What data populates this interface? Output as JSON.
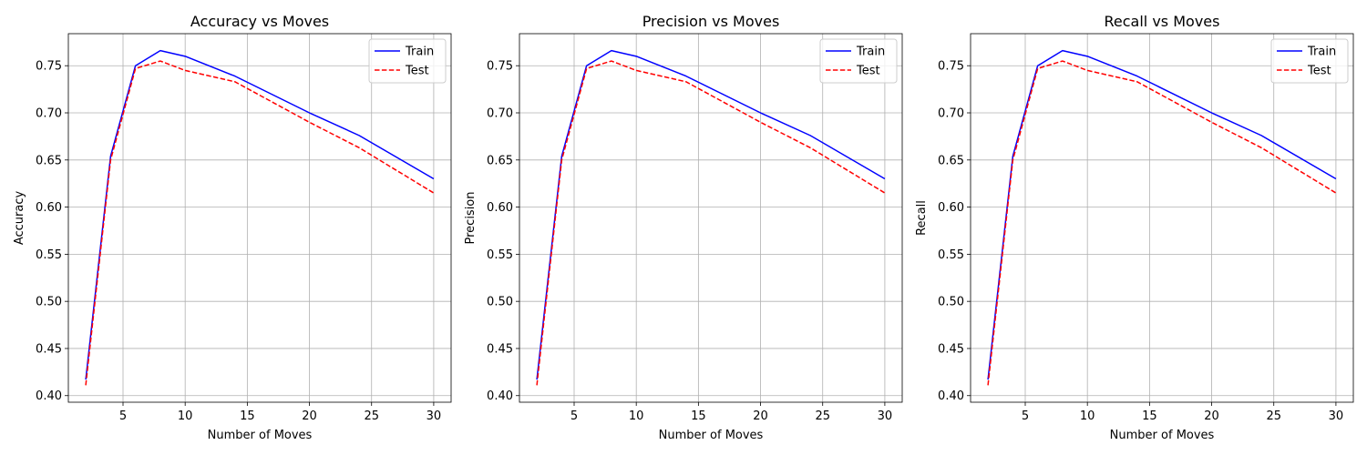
{
  "chart_data": [
    {
      "type": "line",
      "title": "Accuracy vs Moves",
      "xlabel": "Number of Moves",
      "ylabel": "Accuracy",
      "x": [
        2,
        4,
        6,
        8,
        10,
        14,
        20,
        24,
        30
      ],
      "xlim": [
        0.6,
        31.4
      ],
      "ylim": [
        0.393,
        0.784
      ],
      "xticks": [
        5,
        10,
        15,
        20,
        25,
        30
      ],
      "yticks": [
        0.4,
        0.45,
        0.5,
        0.55,
        0.6,
        0.65,
        0.7,
        0.75
      ],
      "grid": true,
      "legend": "top-right",
      "series": [
        {
          "name": "Train",
          "color": "#0000ff",
          "dash": "solid",
          "values": [
            0.417,
            0.654,
            0.75,
            0.766,
            0.76,
            0.739,
            0.7,
            0.676,
            0.63
          ]
        },
        {
          "name": "Test",
          "color": "#ff0000",
          "dash": "dashed",
          "values": [
            0.411,
            0.65,
            0.747,
            0.755,
            0.745,
            0.733,
            0.69,
            0.663,
            0.615
          ]
        }
      ]
    },
    {
      "type": "line",
      "title": "Precision vs Moves",
      "xlabel": "Number of Moves",
      "ylabel": "Precision",
      "x": [
        2,
        4,
        6,
        8,
        10,
        14,
        20,
        24,
        30
      ],
      "xlim": [
        0.6,
        31.4
      ],
      "ylim": [
        0.393,
        0.784
      ],
      "xticks": [
        5,
        10,
        15,
        20,
        25,
        30
      ],
      "yticks": [
        0.4,
        0.45,
        0.5,
        0.55,
        0.6,
        0.65,
        0.7,
        0.75
      ],
      "grid": true,
      "legend": "top-right",
      "series": [
        {
          "name": "Train",
          "color": "#0000ff",
          "dash": "solid",
          "values": [
            0.417,
            0.654,
            0.75,
            0.766,
            0.76,
            0.739,
            0.7,
            0.676,
            0.63
          ]
        },
        {
          "name": "Test",
          "color": "#ff0000",
          "dash": "dashed",
          "values": [
            0.411,
            0.65,
            0.747,
            0.755,
            0.745,
            0.733,
            0.69,
            0.663,
            0.615
          ]
        }
      ]
    },
    {
      "type": "line",
      "title": "Recall vs Moves",
      "xlabel": "Number of Moves",
      "ylabel": "Recall",
      "x": [
        2,
        4,
        6,
        8,
        10,
        14,
        20,
        24,
        30
      ],
      "xlim": [
        0.6,
        31.4
      ],
      "ylim": [
        0.393,
        0.784
      ],
      "xticks": [
        5,
        10,
        15,
        20,
        25,
        30
      ],
      "yticks": [
        0.4,
        0.45,
        0.5,
        0.55,
        0.6,
        0.65,
        0.7,
        0.75
      ],
      "grid": true,
      "legend": "top-right",
      "series": [
        {
          "name": "Train",
          "color": "#0000ff",
          "dash": "solid",
          "values": [
            0.417,
            0.654,
            0.75,
            0.766,
            0.76,
            0.739,
            0.7,
            0.676,
            0.63
          ]
        },
        {
          "name": "Test",
          "color": "#ff0000",
          "dash": "dashed",
          "values": [
            0.411,
            0.65,
            0.747,
            0.755,
            0.745,
            0.733,
            0.69,
            0.663,
            0.615
          ]
        }
      ]
    }
  ]
}
